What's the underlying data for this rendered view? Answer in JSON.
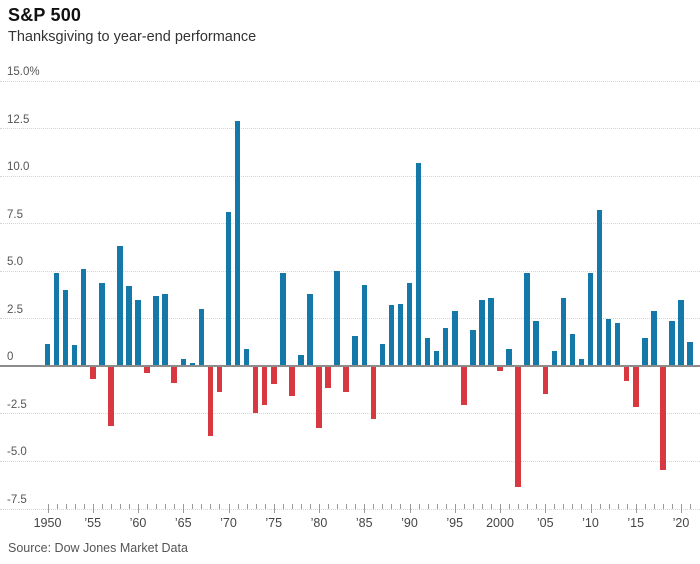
{
  "header": {
    "title": "S&P 500",
    "subtitle": "Thanksgiving to year-end performance"
  },
  "footer": {
    "source": "Source: Dow Jones Market Data"
  },
  "chart_data": {
    "type": "bar",
    "title": "S&P 500",
    "subtitle": "Thanksgiving to year-end performance",
    "source": "Source: Dow Jones Market Data",
    "ylabel": "",
    "xlabel": "",
    "ylim": [
      -7.5,
      15.0
    ],
    "grid": "horizontal-dotted",
    "legend": "none",
    "positive_color": "#1478a8",
    "negative_color": "#d8383f",
    "axis_color": "#8c8c8c",
    "y_ticks": [
      15.0,
      12.5,
      10.0,
      7.5,
      5.0,
      2.5,
      0,
      -2.5,
      -5.0,
      -7.5
    ],
    "y_tick_labels": [
      "15.0%",
      "12.5",
      "10.0",
      "7.5",
      "5.0",
      "2.5",
      "0",
      "-2.5",
      "-5.0",
      "-7.5"
    ],
    "x_label_years": [
      1950,
      1955,
      1960,
      1965,
      1970,
      1975,
      1980,
      1985,
      1990,
      1995,
      2000,
      2005,
      2010,
      2015,
      2020
    ],
    "x_tick_labels": [
      "1950",
      "’55",
      "’60",
      "’65",
      "’70",
      "’75",
      "’80",
      "’85",
      "’90",
      "’95",
      "2000",
      "’05",
      "’10",
      "’15",
      "’20"
    ],
    "x": [
      1950,
      1951,
      1952,
      1953,
      1954,
      1955,
      1956,
      1957,
      1958,
      1959,
      1960,
      1961,
      1962,
      1963,
      1964,
      1965,
      1966,
      1967,
      1968,
      1969,
      1970,
      1971,
      1972,
      1973,
      1974,
      1975,
      1976,
      1977,
      1978,
      1979,
      1980,
      1981,
      1982,
      1983,
      1984,
      1985,
      1986,
      1987,
      1988,
      1989,
      1990,
      1991,
      1992,
      1993,
      1994,
      1995,
      1996,
      1997,
      1998,
      1999,
      2000,
      2001,
      2002,
      2003,
      2004,
      2005,
      2006,
      2007,
      2008,
      2009,
      2010,
      2011,
      2012,
      2013,
      2014,
      2015,
      2016,
      2017,
      2018,
      2019,
      2020,
      2021
    ],
    "values": [
      1.2,
      4.9,
      4.0,
      1.1,
      5.1,
      -0.6,
      4.4,
      -3.1,
      6.3,
      4.2,
      3.5,
      -0.3,
      3.7,
      3.8,
      -0.8,
      0.4,
      0.2,
      3.0,
      -3.6,
      -1.3,
      8.1,
      12.9,
      0.9,
      -2.4,
      -2.0,
      -0.9,
      4.9,
      -1.5,
      0.6,
      3.8,
      -3.2,
      -1.1,
      5.0,
      -1.3,
      1.6,
      4.3,
      -2.7,
      1.2,
      3.2,
      3.3,
      4.4,
      10.7,
      1.5,
      0.8,
      2.0,
      2.9,
      -2.0,
      1.9,
      3.5,
      3.6,
      -0.2,
      0.9,
      -6.3,
      4.9,
      2.4,
      -1.4,
      0.8,
      3.6,
      1.7,
      0.4,
      4.9,
      8.2,
      2.5,
      2.3,
      -0.7,
      -2.1,
      1.5,
      2.9,
      -5.4,
      2.4,
      3.5,
      1.3
    ]
  }
}
